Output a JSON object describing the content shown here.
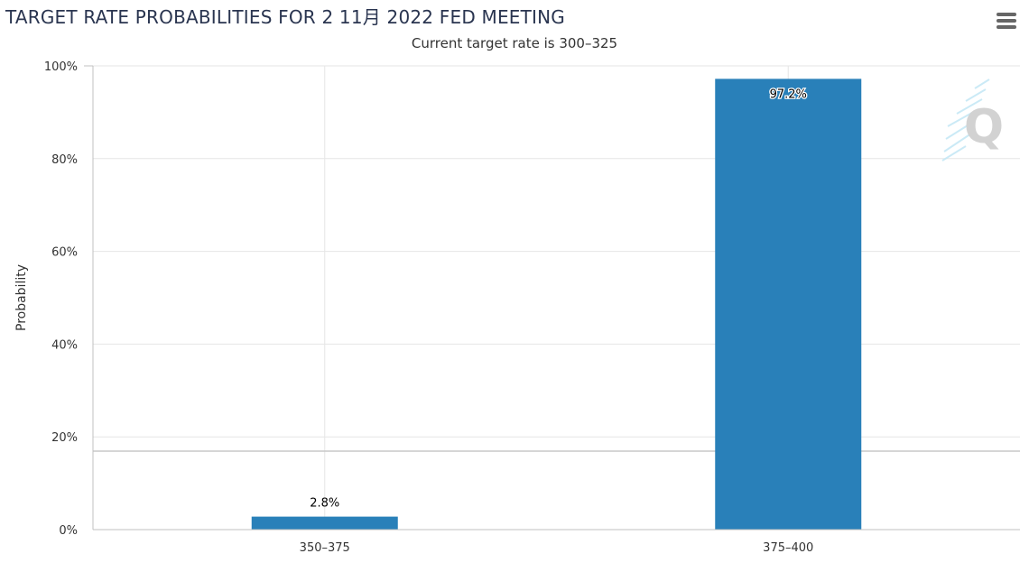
{
  "chart_data": {
    "type": "bar",
    "title": "TARGET RATE PROBABILITIES FOR 2 11月 2022 FED MEETING",
    "subtitle": "Current target rate is 300–325",
    "xlabel": "",
    "ylabel": "Probability",
    "categories": [
      "350–375",
      "375–400"
    ],
    "values": [
      2.8,
      97.2
    ],
    "data_labels": [
      "2.8%",
      "97.2%"
    ],
    "ylim": [
      0,
      100
    ],
    "y_ticks": [
      0,
      20,
      40,
      60,
      80,
      100
    ],
    "y_tick_labels": [
      "0%",
      "20%",
      "40%",
      "60%",
      "80%",
      "100%"
    ],
    "grid": true,
    "bar_color": "#2980b9"
  },
  "toolbar": {
    "menu_icon": "hamburger-menu-icon"
  },
  "watermark": {
    "icon": "quikstrike-logo-icon"
  }
}
